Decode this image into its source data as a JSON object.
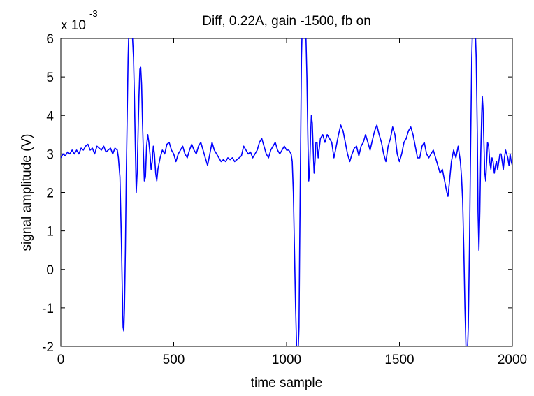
{
  "chart_data": {
    "type": "line",
    "title": "Diff, 0.22A, gain -1500, fb on",
    "xlabel": "time sample",
    "ylabel": "signal amplitude (V)",
    "y_multiplier": "x 10",
    "y_multiplier_exponent": "-3",
    "xlim": [
      0,
      2000
    ],
    "ylim": [
      -2,
      6
    ],
    "x_ticks": [
      0,
      500,
      1000,
      1500,
      2000
    ],
    "y_ticks": [
      -2,
      -1,
      0,
      1,
      2,
      3,
      4,
      5,
      6
    ],
    "grid": false,
    "series": [
      {
        "color": "#0000ff",
        "points": [
          [
            0,
            2.9
          ],
          [
            10,
            3.0
          ],
          [
            20,
            2.95
          ],
          [
            30,
            3.05
          ],
          [
            40,
            3.0
          ],
          [
            50,
            3.1
          ],
          [
            60,
            3.0
          ],
          [
            70,
            3.1
          ],
          [
            80,
            3.0
          ],
          [
            90,
            3.15
          ],
          [
            100,
            3.1
          ],
          [
            110,
            3.2
          ],
          [
            120,
            3.25
          ],
          [
            130,
            3.1
          ],
          [
            140,
            3.15
          ],
          [
            150,
            3.0
          ],
          [
            160,
            3.2
          ],
          [
            170,
            3.15
          ],
          [
            180,
            3.1
          ],
          [
            190,
            3.2
          ],
          [
            200,
            3.05
          ],
          [
            210,
            3.1
          ],
          [
            220,
            3.15
          ],
          [
            230,
            3.0
          ],
          [
            240,
            3.15
          ],
          [
            250,
            3.1
          ],
          [
            255,
            2.9
          ],
          [
            262,
            2.4
          ],
          [
            268,
            0.8
          ],
          [
            272,
            -0.5
          ],
          [
            276,
            -1.5
          ],
          [
            279,
            -1.6
          ],
          [
            282,
            -1.0
          ],
          [
            286,
            0.5
          ],
          [
            290,
            2.5
          ],
          [
            294,
            4.0
          ],
          [
            298,
            5.5
          ],
          [
            302,
            6.3
          ],
          [
            305,
            6.6
          ],
          [
            310,
            6.5
          ],
          [
            316,
            6.2
          ],
          [
            322,
            5.5
          ],
          [
            326,
            4.5
          ],
          [
            330,
            3.2
          ],
          [
            334,
            2.0
          ],
          [
            338,
            2.5
          ],
          [
            342,
            3.5
          ],
          [
            346,
            4.5
          ],
          [
            350,
            5.2
          ],
          [
            354,
            5.25
          ],
          [
            358,
            4.8
          ],
          [
            362,
            3.8
          ],
          [
            366,
            3.0
          ],
          [
            370,
            2.3
          ],
          [
            375,
            2.4
          ],
          [
            380,
            3.2
          ],
          [
            385,
            3.5
          ],
          [
            390,
            3.3
          ],
          [
            395,
            3.0
          ],
          [
            400,
            2.6
          ],
          [
            405,
            2.8
          ],
          [
            410,
            3.2
          ],
          [
            415,
            3.0
          ],
          [
            420,
            2.5
          ],
          [
            425,
            2.3
          ],
          [
            430,
            2.6
          ],
          [
            440,
            2.9
          ],
          [
            450,
            3.1
          ],
          [
            460,
            3.0
          ],
          [
            470,
            3.25
          ],
          [
            480,
            3.3
          ],
          [
            490,
            3.1
          ],
          [
            500,
            3.0
          ],
          [
            510,
            2.8
          ],
          [
            520,
            3.0
          ],
          [
            530,
            3.1
          ],
          [
            540,
            3.2
          ],
          [
            550,
            3.0
          ],
          [
            560,
            2.9
          ],
          [
            570,
            3.1
          ],
          [
            580,
            3.25
          ],
          [
            590,
            3.1
          ],
          [
            600,
            3.0
          ],
          [
            610,
            3.2
          ],
          [
            620,
            3.3
          ],
          [
            630,
            3.1
          ],
          [
            640,
            2.9
          ],
          [
            650,
            2.7
          ],
          [
            660,
            3.0
          ],
          [
            670,
            3.3
          ],
          [
            680,
            3.1
          ],
          [
            690,
            3.0
          ],
          [
            700,
            2.9
          ],
          [
            710,
            2.8
          ],
          [
            720,
            2.85
          ],
          [
            730,
            2.8
          ],
          [
            740,
            2.9
          ],
          [
            750,
            2.85
          ],
          [
            760,
            2.9
          ],
          [
            770,
            2.8
          ],
          [
            780,
            2.85
          ],
          [
            790,
            2.9
          ],
          [
            800,
            2.95
          ],
          [
            810,
            3.2
          ],
          [
            820,
            3.1
          ],
          [
            830,
            3.0
          ],
          [
            840,
            3.05
          ],
          [
            850,
            2.9
          ],
          [
            860,
            3.0
          ],
          [
            870,
            3.1
          ],
          [
            880,
            3.3
          ],
          [
            890,
            3.4
          ],
          [
            900,
            3.2
          ],
          [
            910,
            3.0
          ],
          [
            920,
            2.9
          ],
          [
            930,
            3.1
          ],
          [
            940,
            3.2
          ],
          [
            950,
            3.3
          ],
          [
            960,
            3.1
          ],
          [
            970,
            3.0
          ],
          [
            980,
            3.1
          ],
          [
            990,
            3.2
          ],
          [
            1000,
            3.1
          ],
          [
            1010,
            3.1
          ],
          [
            1020,
            3.0
          ],
          [
            1025,
            2.8
          ],
          [
            1030,
            2.0
          ],
          [
            1035,
            0.5
          ],
          [
            1040,
            -1.0
          ],
          [
            1045,
            -2.1
          ],
          [
            1050,
            -2.3
          ],
          [
            1055,
            -1.5
          ],
          [
            1058,
            0.5
          ],
          [
            1062,
            3.0
          ],
          [
            1066,
            5.5
          ],
          [
            1070,
            6.5
          ],
          [
            1075,
            6.7
          ],
          [
            1080,
            6.5
          ],
          [
            1085,
            6.2
          ],
          [
            1090,
            5.0
          ],
          [
            1094,
            3.5
          ],
          [
            1098,
            2.3
          ],
          [
            1102,
            2.5
          ],
          [
            1106,
            3.4
          ],
          [
            1110,
            4.0
          ],
          [
            1114,
            3.8
          ],
          [
            1118,
            3.1
          ],
          [
            1122,
            2.5
          ],
          [
            1126,
            2.8
          ],
          [
            1130,
            3.3
          ],
          [
            1135,
            3.3
          ],
          [
            1140,
            2.9
          ],
          [
            1150,
            3.4
          ],
          [
            1160,
            3.5
          ],
          [
            1170,
            3.3
          ],
          [
            1180,
            3.5
          ],
          [
            1190,
            3.4
          ],
          [
            1200,
            3.3
          ],
          [
            1210,
            2.9
          ],
          [
            1220,
            3.2
          ],
          [
            1230,
            3.5
          ],
          [
            1240,
            3.75
          ],
          [
            1250,
            3.6
          ],
          [
            1260,
            3.3
          ],
          [
            1270,
            3.0
          ],
          [
            1280,
            2.8
          ],
          [
            1290,
            3.0
          ],
          [
            1300,
            3.15
          ],
          [
            1310,
            3.2
          ],
          [
            1320,
            2.95
          ],
          [
            1330,
            3.2
          ],
          [
            1340,
            3.3
          ],
          [
            1350,
            3.5
          ],
          [
            1360,
            3.3
          ],
          [
            1370,
            3.1
          ],
          [
            1380,
            3.35
          ],
          [
            1390,
            3.6
          ],
          [
            1400,
            3.75
          ],
          [
            1410,
            3.5
          ],
          [
            1420,
            3.3
          ],
          [
            1430,
            3.0
          ],
          [
            1440,
            2.8
          ],
          [
            1450,
            3.2
          ],
          [
            1460,
            3.4
          ],
          [
            1470,
            3.7
          ],
          [
            1480,
            3.5
          ],
          [
            1490,
            3.0
          ],
          [
            1500,
            2.8
          ],
          [
            1510,
            3.0
          ],
          [
            1520,
            3.3
          ],
          [
            1530,
            3.4
          ],
          [
            1540,
            3.6
          ],
          [
            1550,
            3.7
          ],
          [
            1560,
            3.5
          ],
          [
            1570,
            3.2
          ],
          [
            1580,
            2.9
          ],
          [
            1590,
            2.9
          ],
          [
            1600,
            3.2
          ],
          [
            1610,
            3.3
          ],
          [
            1620,
            3.0
          ],
          [
            1630,
            2.9
          ],
          [
            1640,
            3.0
          ],
          [
            1650,
            3.1
          ],
          [
            1660,
            2.9
          ],
          [
            1670,
            2.7
          ],
          [
            1680,
            2.5
          ],
          [
            1690,
            2.6
          ],
          [
            1700,
            2.3
          ],
          [
            1710,
            2.0
          ],
          [
            1715,
            1.9
          ],
          [
            1720,
            2.2
          ],
          [
            1730,
            2.8
          ],
          [
            1740,
            3.1
          ],
          [
            1750,
            2.9
          ],
          [
            1760,
            3.2
          ],
          [
            1770,
            2.8
          ],
          [
            1775,
            2.4
          ],
          [
            1780,
            1.8
          ],
          [
            1785,
            0.5
          ],
          [
            1790,
            -1.0
          ],
          [
            1795,
            -2.1
          ],
          [
            1800,
            -2.3
          ],
          [
            1805,
            -1.5
          ],
          [
            1810,
            0.5
          ],
          [
            1815,
            3.0
          ],
          [
            1820,
            5.5
          ],
          [
            1825,
            6.6
          ],
          [
            1830,
            6.7
          ],
          [
            1835,
            6.4
          ],
          [
            1840,
            5.5
          ],
          [
            1845,
            3.5
          ],
          [
            1848,
            1.5
          ],
          [
            1852,
            0.5
          ],
          [
            1856,
            1.5
          ],
          [
            1860,
            3.0
          ],
          [
            1864,
            4.0
          ],
          [
            1867,
            4.5
          ],
          [
            1870,
            4.2
          ],
          [
            1874,
            3.3
          ],
          [
            1878,
            2.5
          ],
          [
            1882,
            2.3
          ],
          [
            1886,
            2.8
          ],
          [
            1890,
            3.3
          ],
          [
            1895,
            3.2
          ],
          [
            1900,
            2.8
          ],
          [
            1905,
            2.6
          ],
          [
            1910,
            2.9
          ],
          [
            1915,
            2.8
          ],
          [
            1920,
            2.5
          ],
          [
            1925,
            2.7
          ],
          [
            1930,
            2.8
          ],
          [
            1935,
            2.6
          ],
          [
            1940,
            2.8
          ],
          [
            1945,
            3.0
          ],
          [
            1950,
            3.0
          ],
          [
            1955,
            2.8
          ],
          [
            1960,
            2.6
          ],
          [
            1965,
            2.9
          ],
          [
            1970,
            3.1
          ],
          [
            1975,
            3.0
          ],
          [
            1980,
            2.9
          ],
          [
            1985,
            2.7
          ],
          [
            1990,
            3.0
          ],
          [
            1995,
            2.8
          ],
          [
            2000,
            2.7
          ]
        ]
      }
    ]
  }
}
